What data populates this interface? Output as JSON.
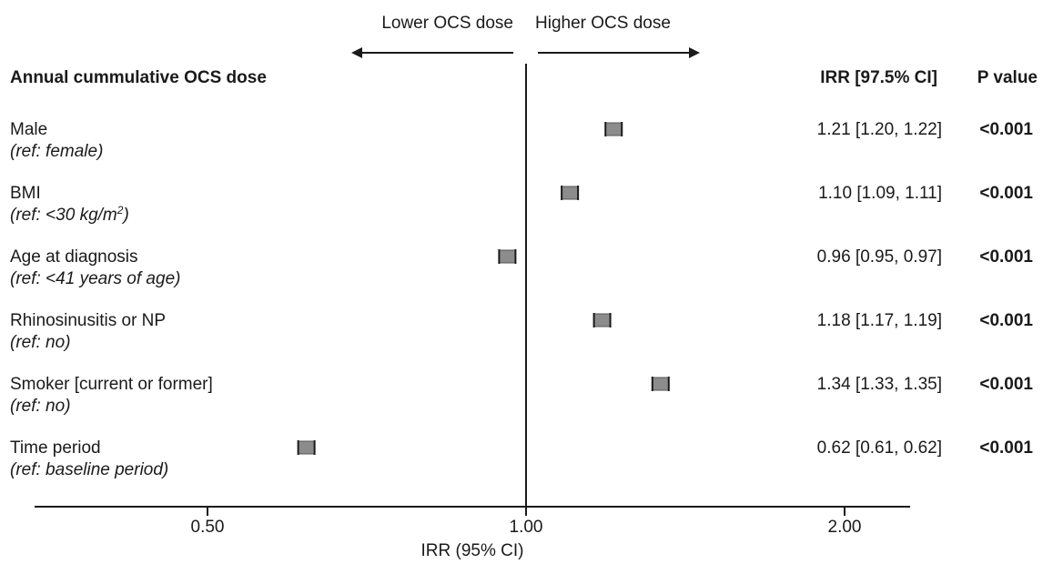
{
  "chart_data": {
    "type": "forest",
    "title": "Annual cummulative OCS dose",
    "xlabel": "IRR (95% CI)",
    "xscale": "log",
    "xlim": [
      0.34,
      2.6
    ],
    "reference_line": 1.0,
    "ticks": [
      {
        "value": 0.5,
        "label": "0.50"
      },
      {
        "value": 1.0,
        "label": "1.00"
      },
      {
        "value": 2.0,
        "label": "2.00"
      }
    ],
    "direction_labels": {
      "left": "Lower OCS dose",
      "right": "Higher OCS dose"
    },
    "columns": {
      "irr": "IRR [97.5% CI]",
      "p": "P value"
    },
    "marker_color": "#8c8c8c",
    "rows": [
      {
        "label": "Male",
        "ref": "(ref: female)",
        "irr": 1.21,
        "lo": 1.2,
        "hi": 1.22,
        "ci_text": "1.21 [1.20, 1.22]",
        "p": "<0.001"
      },
      {
        "label": "BMI",
        "ref": "(ref: <30 kg/m",
        "ref_sup": "2",
        "ref_tail": ")",
        "irr": 1.1,
        "lo": 1.09,
        "hi": 1.11,
        "ci_text": "1.10 [1.09, 1.11]",
        "p": "<0.001"
      },
      {
        "label": "Age at diagnosis",
        "ref": "(ref: <41 years of age)",
        "irr": 0.96,
        "lo": 0.95,
        "hi": 0.97,
        "ci_text": "0.96 [0.95, 0.97]",
        "p": "<0.001"
      },
      {
        "label": "Rhinosinusitis or NP",
        "ref": "(ref: no)",
        "irr": 1.18,
        "lo": 1.17,
        "hi": 1.19,
        "ci_text": "1.18 [1.17, 1.19]",
        "p": "<0.001"
      },
      {
        "label": "Smoker [current or former]",
        "ref": "(ref: no)",
        "irr": 1.34,
        "lo": 1.33,
        "hi": 1.35,
        "ci_text": "1.34 [1.33, 1.35]",
        "p": "<0.001"
      },
      {
        "label": "Time period",
        "ref": "(ref: baseline period)",
        "irr": 0.62,
        "lo": 0.61,
        "hi": 0.62,
        "ci_text": "0.62 [0.61, 0.62]",
        "p": "<0.001"
      }
    ]
  }
}
